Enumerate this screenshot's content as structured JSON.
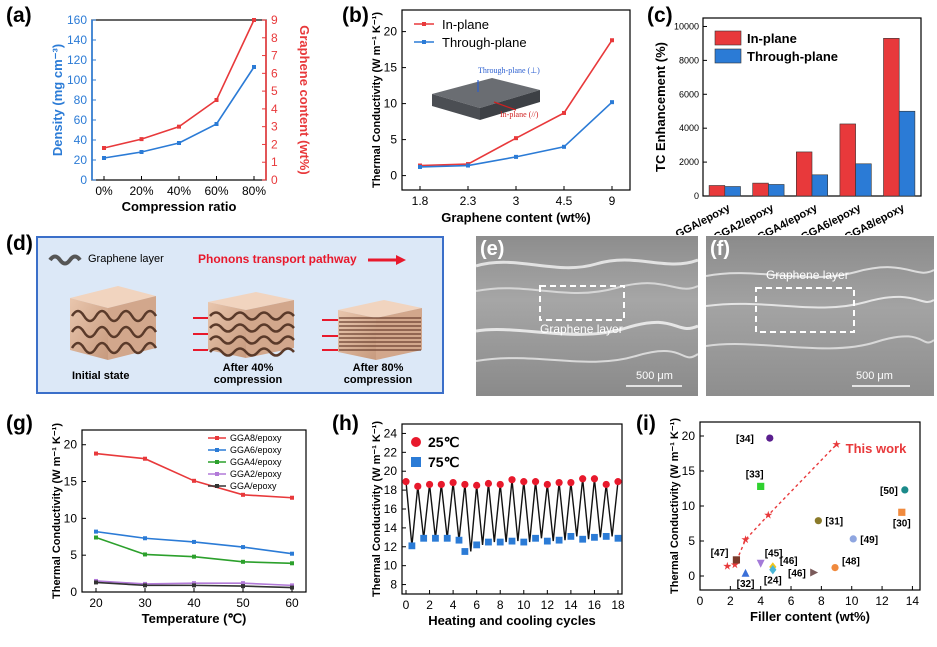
{
  "colors": {
    "red": "#e8393b",
    "blue": "#2b7bd6",
    "black": "#111111",
    "purple": "#b27ad8",
    "darkred": "#8e1d1d",
    "darkblue": "#1e5fbf",
    "diagram_bg": "#dce8f7",
    "diagram_border": "#3b6fc9",
    "arrow": "#e8192c"
  },
  "chart_data": [
    {
      "id": "a",
      "panel_label": "(a)",
      "type": "line",
      "categories": [
        "0%",
        "20%",
        "40%",
        "60%",
        "80%"
      ],
      "xlabel": "Compression ratio",
      "ylabel_left": "Density (mg cm⁻³)",
      "ylabel_right": "Graphene content (wt%)",
      "ylim_left": [
        0,
        160
      ],
      "yticks_left": [
        "0",
        "20",
        "40",
        "60",
        "80",
        "100",
        "120",
        "140",
        "160"
      ],
      "ylim_right": [
        0,
        9
      ],
      "yticks_right": [
        "0",
        "1",
        "2",
        "3",
        "4",
        "5",
        "6",
        "7",
        "8",
        "9"
      ],
      "series": [
        {
          "axis": "left",
          "color": "#2b7bd6",
          "values": [
            22,
            28,
            37,
            56,
            113
          ]
        },
        {
          "axis": "right",
          "color": "#e8393b",
          "values": [
            1.8,
            2.3,
            3.0,
            4.5,
            9.0
          ]
        }
      ]
    },
    {
      "id": "b",
      "panel_label": "(b)",
      "type": "line",
      "categories": [
        "1.8",
        "2.3",
        "3",
        "4.5",
        "9"
      ],
      "xlabel": "Graphene content (wt%)",
      "ylabel": "Thermal Conductivity (W m⁻¹ K⁻¹)",
      "ylim": [
        -2,
        23
      ],
      "yticks": [
        "0",
        "5",
        "10",
        "15",
        "20"
      ],
      "legend": "top-left",
      "series": [
        {
          "name": "In-plane",
          "color": "#e8393b",
          "values": [
            1.4,
            1.6,
            5.2,
            8.7,
            18.8
          ]
        },
        {
          "name": "Through-plane",
          "color": "#2b7bd6",
          "values": [
            1.2,
            1.4,
            2.6,
            4.0,
            10.2
          ]
        }
      ],
      "inset": {
        "through_label": "Through-plane (⊥)",
        "in_label": "In-plane (//)"
      }
    },
    {
      "id": "c",
      "panel_label": "(c)",
      "type": "bar",
      "categories": [
        "GGA/epoxy",
        "GGA2/epoxy",
        "GGA4/epoxy",
        "GGA6/epoxy",
        "GGA8/epoxy"
      ],
      "ylabel": "TC Enhancement (%)",
      "ylim": [
        0,
        10500
      ],
      "yticks": [
        "0",
        "2000",
        "4000",
        "6000",
        "8000",
        "10000"
      ],
      "legend": "top-left",
      "series": [
        {
          "name": "In-plane",
          "color": "#e8393b",
          "values": [
            620,
            760,
            2600,
            4250,
            9300
          ]
        },
        {
          "name": "Through-plane",
          "color": "#2b7bd6",
          "values": [
            560,
            680,
            1250,
            1900,
            5000
          ]
        }
      ]
    },
    {
      "id": "g",
      "panel_label": "(g)",
      "type": "line",
      "x": [
        20,
        30,
        40,
        50,
        60
      ],
      "xticks": [
        "20",
        "30",
        "40",
        "50",
        "60"
      ],
      "xlabel": "Temperature (℃)",
      "ylabel": "Thermal Conductivity (W m⁻¹ K⁻¹)",
      "ylim": [
        0,
        22
      ],
      "yticks": [
        "0",
        "5",
        "10",
        "15",
        "20"
      ],
      "legend": "top-right",
      "series": [
        {
          "name": "GGA8/epoxy",
          "color": "#e8393b",
          "values": [
            18.8,
            18.1,
            15.1,
            13.2,
            12.8
          ]
        },
        {
          "name": "GGA6/epoxy",
          "color": "#2b7bd6",
          "values": [
            8.2,
            7.3,
            6.8,
            6.1,
            5.2
          ]
        },
        {
          "name": "GGA4/epoxy",
          "color": "#2ca02c",
          "values": [
            7.4,
            5.1,
            4.8,
            4.1,
            3.9
          ]
        },
        {
          "name": "GGA2/epoxy",
          "color": "#b27ad8",
          "values": [
            1.5,
            1.1,
            1.2,
            1.2,
            0.9
          ]
        },
        {
          "name": "GGA/epoxy",
          "color": "#333333",
          "values": [
            1.3,
            0.9,
            0.9,
            0.8,
            0.6
          ]
        }
      ]
    },
    {
      "id": "h",
      "panel_label": "(h)",
      "type": "line",
      "xlabel": "Heating and cooling cycles",
      "ylabel": "Thermal Conductivity (W m⁻¹ K⁻¹)",
      "xlim": [
        0,
        18
      ],
      "xticks": [
        "0",
        "2",
        "4",
        "6",
        "8",
        "10",
        "12",
        "14",
        "16",
        "18"
      ],
      "ylim": [
        7,
        25
      ],
      "yticks": [
        "8",
        "10",
        "12",
        "14",
        "16",
        "18",
        "20",
        "22",
        "24"
      ],
      "legend": "top-left",
      "series": [
        {
          "name": "25℃",
          "color": "#e8192c",
          "marker": "circle",
          "x": [
            0,
            1,
            2,
            3,
            4,
            5,
            6,
            7,
            8,
            9,
            10,
            11,
            12,
            13,
            14,
            15,
            16,
            17,
            18
          ],
          "values": [
            18.9,
            18.4,
            18.6,
            18.6,
            18.8,
            18.6,
            18.5,
            18.7,
            18.6,
            19.1,
            18.9,
            18.9,
            18.6,
            18.8,
            18.8,
            19.2,
            19.2,
            18.6,
            18.9
          ]
        },
        {
          "name": "75℃",
          "color": "#2b7bd6",
          "marker": "square",
          "x": [
            0.5,
            1.5,
            2.5,
            3.5,
            4.5,
            5,
            6,
            7,
            8,
            9,
            10,
            11,
            12,
            13,
            14,
            15,
            16,
            17,
            18
          ],
          "values": [
            12.1,
            12.9,
            12.9,
            12.9,
            12.7,
            11.5,
            12.2,
            12.5,
            12.5,
            12.6,
            12.5,
            12.9,
            12.6,
            12.7,
            13.1,
            12.8,
            13.0,
            13.1,
            12.9
          ]
        }
      ]
    },
    {
      "id": "i",
      "panel_label": "(i)",
      "type": "scatter",
      "xlabel": "Filler content (wt%)",
      "ylabel": "Thermal Conductivity (W m⁻¹ K⁻¹)",
      "xlim": [
        0,
        14.5
      ],
      "xticks": [
        "0",
        "2",
        "4",
        "6",
        "8",
        "10",
        "12",
        "14"
      ],
      "ylim": [
        -2,
        22
      ],
      "yticks": [
        "0",
        "5",
        "10",
        "15",
        "20"
      ],
      "this_work": {
        "label": "This work",
        "color": "#e8393b",
        "x": [
          1.8,
          2.3,
          3,
          4.5,
          9
        ],
        "values": [
          1.4,
          1.6,
          5.2,
          8.7,
          18.8
        ]
      },
      "points": [
        {
          "label": "[34]",
          "x": 4.6,
          "y": 19.7,
          "color": "#5a1f8e",
          "marker": "circle"
        },
        {
          "label": "[33]",
          "x": 4.0,
          "y": 12.8,
          "color": "#2fd12f",
          "marker": "square"
        },
        {
          "label": "[50]",
          "x": 13.5,
          "y": 12.3,
          "color": "#1b8a8a",
          "marker": "circle"
        },
        {
          "label": "[30]",
          "x": 13.3,
          "y": 9.1,
          "color": "#f08a3e",
          "marker": "square"
        },
        {
          "label": "[31]",
          "x": 7.8,
          "y": 7.9,
          "color": "#8a7a2a",
          "marker": "circle"
        },
        {
          "label": "[49]",
          "x": 10.1,
          "y": 5.3,
          "color": "#8fa6e0",
          "marker": "circle"
        },
        {
          "label": "[47]",
          "x": 2.4,
          "y": 2.3,
          "color": "#7a3a2a",
          "marker": "square"
        },
        {
          "label": "[45]",
          "x": 4.0,
          "y": 1.8,
          "color": "#a37ad8",
          "marker": "tri-down"
        },
        {
          "label": "[46]",
          "x": 4.8,
          "y": 1.3,
          "color": "#f5c518",
          "marker": "diamond"
        },
        {
          "label": "[24]",
          "x": 4.8,
          "y": 0.9,
          "color": "#49b6d6",
          "marker": "diamond"
        },
        {
          "label": "[48]",
          "x": 8.9,
          "y": 1.2,
          "color": "#f08a3e",
          "marker": "circle"
        },
        {
          "label": "[46]",
          "x": 7.5,
          "y": 0.5,
          "color": "#7a5a5a",
          "marker": "tri-right"
        },
        {
          "label": "[32]",
          "x": 3.0,
          "y": 0.4,
          "color": "#3a6fd8",
          "marker": "tri-up"
        }
      ]
    }
  ],
  "panel_d": {
    "label": "(d)",
    "legend_layer": "Graphene layer",
    "legend_pathway": "Phonons transport pathway",
    "stages": [
      {
        "label": "Initial state"
      },
      {
        "label": "After 40% compression"
      },
      {
        "label": "After 80% compression"
      }
    ]
  },
  "panel_e": {
    "label": "(e)",
    "region_label": "Graphene layer",
    "scale": "500 μm"
  },
  "panel_f": {
    "label": "(f)",
    "region_label": "Graphene layer",
    "scale": "500 μm"
  }
}
